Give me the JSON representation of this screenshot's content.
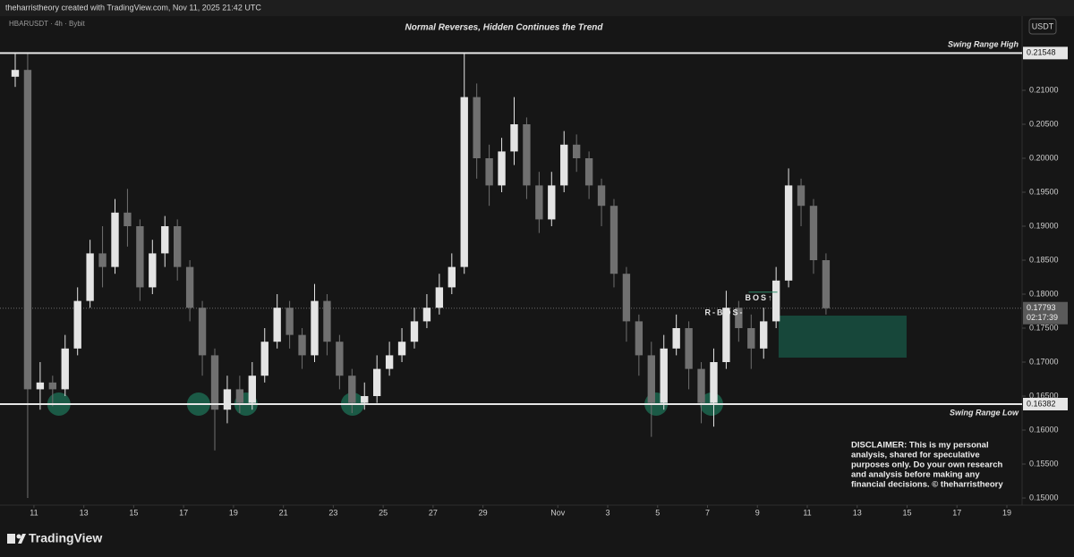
{
  "header": "theharristheory created with TradingView.com, Nov 11, 2025 21:42 UTC",
  "footer_logo": "TradingView",
  "chart_data": {
    "type": "candlestick",
    "title": "Normal Reverses, Hidden Continues the Trend",
    "symbol": "HBARUSDT · 4h · Bybit",
    "currency": "USDT",
    "x": [
      10.25,
      10.75,
      11.25,
      11.75,
      12.25,
      12.75,
      13.25,
      13.75,
      14.25,
      14.75,
      15.25,
      15.75,
      16.25,
      16.75,
      17.25,
      17.75,
      18.25,
      18.75,
      19.25,
      19.75,
      20.25,
      20.75,
      21.25,
      21.75,
      22.25,
      22.75,
      23.25,
      23.75,
      24.25,
      24.75,
      25.25,
      25.75,
      26.25,
      26.75,
      27.25,
      27.75,
      28.25,
      28.75,
      29.25,
      29.75,
      30.25,
      30.75,
      31.25,
      31.75,
      32.25,
      32.75,
      33.25,
      33.75,
      34.25,
      34.75,
      35.25,
      35.75,
      36.25,
      36.75,
      37.25,
      37.75,
      38.25,
      38.75,
      39.25,
      39.75,
      40.25,
      40.75,
      41.25,
      41.75,
      42.25,
      42.75
    ],
    "open": [
      0.212,
      0.213,
      0.166,
      0.167,
      0.166,
      0.172,
      0.179,
      0.186,
      0.184,
      0.192,
      0.19,
      0.181,
      0.186,
      0.19,
      0.184,
      0.178,
      0.171,
      0.163,
      0.166,
      0.164,
      0.168,
      0.173,
      0.178,
      0.174,
      0.171,
      0.179,
      0.173,
      0.168,
      0.164,
      0.165,
      0.169,
      0.171,
      0.173,
      0.176,
      0.178,
      0.181,
      0.184,
      0.209,
      0.2,
      0.196,
      0.201,
      0.205,
      0.196,
      0.191,
      0.196,
      0.202,
      0.2,
      0.196,
      0.193,
      0.183,
      0.176,
      0.171,
      0.164,
      0.172,
      0.175,
      0.169,
      0.164,
      0.17,
      0.178,
      0.175,
      0.172,
      0.176,
      0.182,
      0.196,
      0.193,
      0.185
    ],
    "high": [
      0.2155,
      0.2155,
      0.17,
      0.168,
      0.174,
      0.181,
      0.188,
      0.19,
      0.194,
      0.1955,
      0.191,
      0.188,
      0.1915,
      0.191,
      0.185,
      0.179,
      0.172,
      0.168,
      0.168,
      0.17,
      0.175,
      0.18,
      0.179,
      0.175,
      0.1815,
      0.18,
      0.174,
      0.169,
      0.167,
      0.171,
      0.173,
      0.175,
      0.178,
      0.18,
      0.183,
      0.186,
      0.2155,
      0.211,
      0.202,
      0.203,
      0.209,
      0.206,
      0.198,
      0.198,
      0.204,
      0.2035,
      0.201,
      0.197,
      0.194,
      0.184,
      0.177,
      0.173,
      0.174,
      0.177,
      0.176,
      0.17,
      0.172,
      0.1805,
      0.179,
      0.177,
      0.178,
      0.184,
      0.1985,
      0.197,
      0.194,
      0.186
    ],
    "low": [
      0.2105,
      0.15,
      0.163,
      0.1635,
      0.165,
      0.171,
      0.178,
      0.181,
      0.183,
      0.187,
      0.179,
      0.18,
      0.184,
      0.182,
      0.176,
      0.168,
      0.157,
      0.161,
      0.1625,
      0.163,
      0.167,
      0.172,
      0.172,
      0.169,
      0.17,
      0.171,
      0.166,
      0.1625,
      0.163,
      0.164,
      0.168,
      0.17,
      0.172,
      0.175,
      0.177,
      0.18,
      0.183,
      0.197,
      0.193,
      0.195,
      0.199,
      0.194,
      0.189,
      0.19,
      0.195,
      0.198,
      0.194,
      0.19,
      0.181,
      0.173,
      0.168,
      0.159,
      0.163,
      0.171,
      0.166,
      0.161,
      0.1605,
      0.169,
      0.173,
      0.169,
      0.1705,
      0.175,
      0.181,
      0.19,
      0.183,
      0.177
    ],
    "close": [
      0.213,
      0.166,
      0.167,
      0.166,
      0.172,
      0.179,
      0.186,
      0.184,
      0.192,
      0.19,
      0.181,
      0.186,
      0.19,
      0.184,
      0.178,
      0.171,
      0.163,
      0.166,
      0.164,
      0.168,
      0.173,
      0.178,
      0.174,
      0.171,
      0.179,
      0.173,
      0.168,
      0.164,
      0.165,
      0.169,
      0.171,
      0.173,
      0.176,
      0.178,
      0.181,
      0.184,
      0.209,
      0.2,
      0.196,
      0.201,
      0.205,
      0.196,
      0.191,
      0.196,
      0.202,
      0.2,
      0.196,
      0.193,
      0.183,
      0.176,
      0.171,
      0.164,
      0.172,
      0.175,
      0.169,
      0.164,
      0.17,
      0.178,
      0.175,
      0.172,
      0.176,
      0.182,
      0.196,
      0.193,
      0.185,
      0.17793
    ],
    "up_color": "#e4e4e4",
    "down_color": "#707070",
    "xlim": [
      9.64,
      50.61
    ],
    "xticks": [
      11,
      13,
      15,
      17,
      19,
      21,
      23,
      25,
      27,
      29,
      {
        "value": 32,
        "label": "Nov"
      },
      {
        "value": 34,
        "label": "3"
      },
      {
        "value": 36,
        "label": "5"
      },
      {
        "value": 38,
        "label": "7"
      },
      {
        "value": 40,
        "label": "9"
      },
      {
        "value": 42,
        "label": "11"
      },
      {
        "value": 44,
        "label": "13"
      },
      {
        "value": 46,
        "label": "15"
      },
      {
        "value": 48,
        "label": "17"
      },
      {
        "value": 50,
        "label": "19"
      }
    ],
    "ylim": [
      0.14895,
      0.22092
    ],
    "yticks": [
      {
        "value": 0.15,
        "label": "0.15000"
      },
      {
        "value": 0.155,
        "label": "0.15500"
      },
      {
        "value": 0.16,
        "label": "0.16000"
      },
      {
        "value": 0.165,
        "label": "0.16500"
      },
      {
        "value": 0.17,
        "label": "0.17000"
      },
      {
        "value": 0.175,
        "label": "0.17500"
      },
      {
        "value": 0.18,
        "label": "0.18000"
      },
      {
        "value": 0.185,
        "label": "0.18500"
      },
      {
        "value": 0.19,
        "label": "0.19000"
      },
      {
        "value": 0.195,
        "label": "0.19500"
      },
      {
        "value": 0.2,
        "label": "0.20000"
      },
      {
        "value": 0.205,
        "label": "0.20500"
      },
      {
        "value": 0.21,
        "label": "0.21000"
      }
    ],
    "levels": [
      {
        "name": "Swing Range High",
        "value": 0.21548
      },
      {
        "name": "Swing Range Low",
        "value": 0.16382
      }
    ],
    "last_price": {
      "value": 0.17793,
      "timer": "02:17:39"
    },
    "bos": {
      "label": "BOS↑",
      "value": 0.1803,
      "x": [
        39.65,
        40.8
      ]
    },
    "r_bos": {
      "label": "R-BOS-",
      "value": 0.1772
    },
    "zone": {
      "x": [
        40.85,
        45.98
      ],
      "y": [
        0.17066,
        0.17684
      ],
      "color": "#17473a"
    },
    "highlights": {
      "x": [
        12.0,
        17.6,
        19.5,
        23.77,
        35.94,
        38.16
      ],
      "color": "#1d6b52"
    },
    "disclaimer": [
      "DISCLAIMER: This is my personal",
      "analysis, shared for speculative",
      "purposes only. Do your own research",
      "and analysis before making any",
      "financial decisions. © theharristheory"
    ]
  }
}
